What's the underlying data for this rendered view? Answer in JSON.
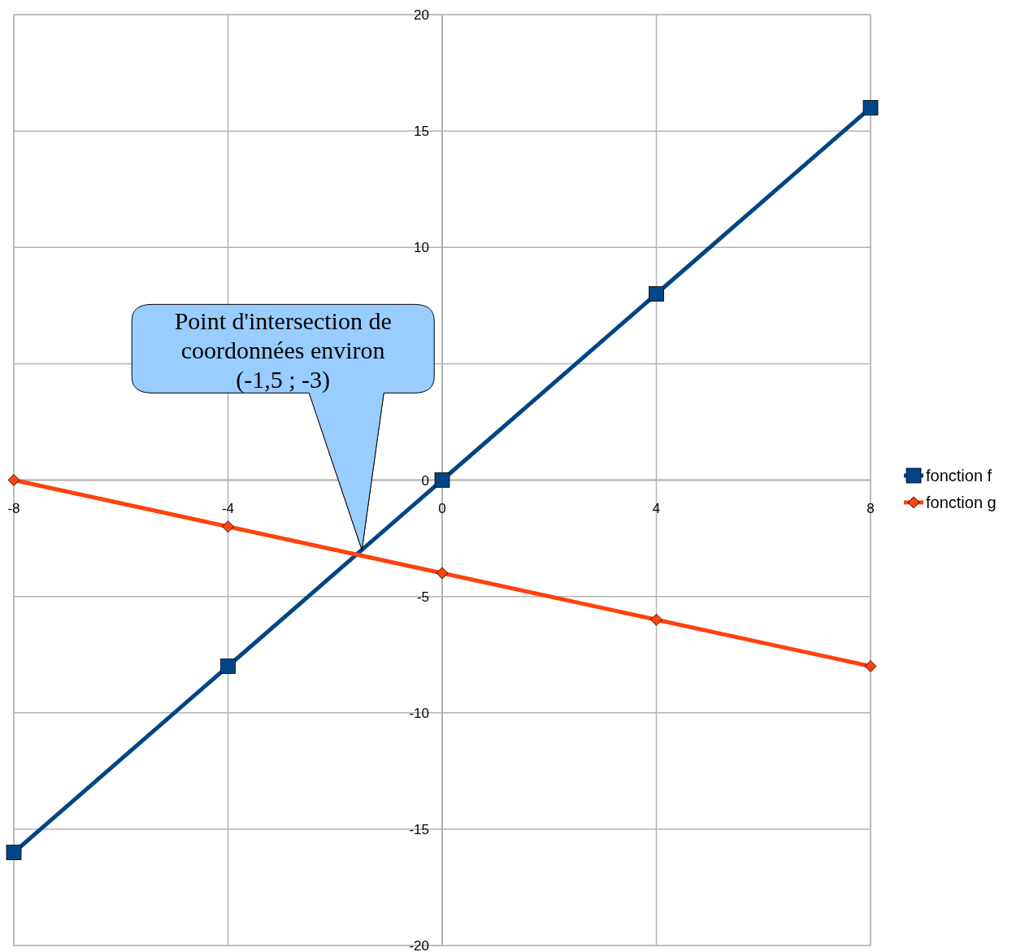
{
  "chart_data": {
    "type": "line",
    "x": [
      -8,
      -4,
      0,
      4,
      8
    ],
    "series": [
      {
        "name": "fonction f",
        "color": "#004586",
        "values": [
          -16,
          -8,
          0,
          8,
          16
        ],
        "marker": "square"
      },
      {
        "name": "fonction g",
        "color": "#ff420e",
        "values": [
          0,
          -2,
          -4,
          -6,
          -8
        ],
        "marker": "diamond"
      }
    ],
    "xlim": [
      -8,
      8
    ],
    "xticks": [
      -8,
      -4,
      0,
      4,
      8
    ],
    "ylim": [
      -20,
      20
    ],
    "yticks": [
      -20,
      -15,
      -10,
      -5,
      0,
      {
        "value": 5,
        "label": null
      },
      10,
      15,
      20
    ],
    "grid": true,
    "legend": "right",
    "line_style": "solid",
    "annotations": [
      {
        "text": "Point d'intersection de coordonnées environ (-1,5 ; -3)",
        "x": -1.5,
        "y": -3
      }
    ]
  }
}
